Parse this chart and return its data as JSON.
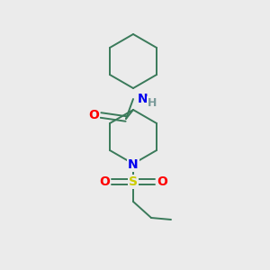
{
  "background_color": "#ebebeb",
  "bond_color": "#3a7a5a",
  "atom_colors": {
    "N": "#0000ee",
    "O": "#ff0000",
    "S": "#cccc00",
    "H": "#7a9a9a"
  },
  "figsize": [
    3.0,
    3.0
  ],
  "dpi": 100,
  "bond_lw": 1.4,
  "font_size": 10
}
